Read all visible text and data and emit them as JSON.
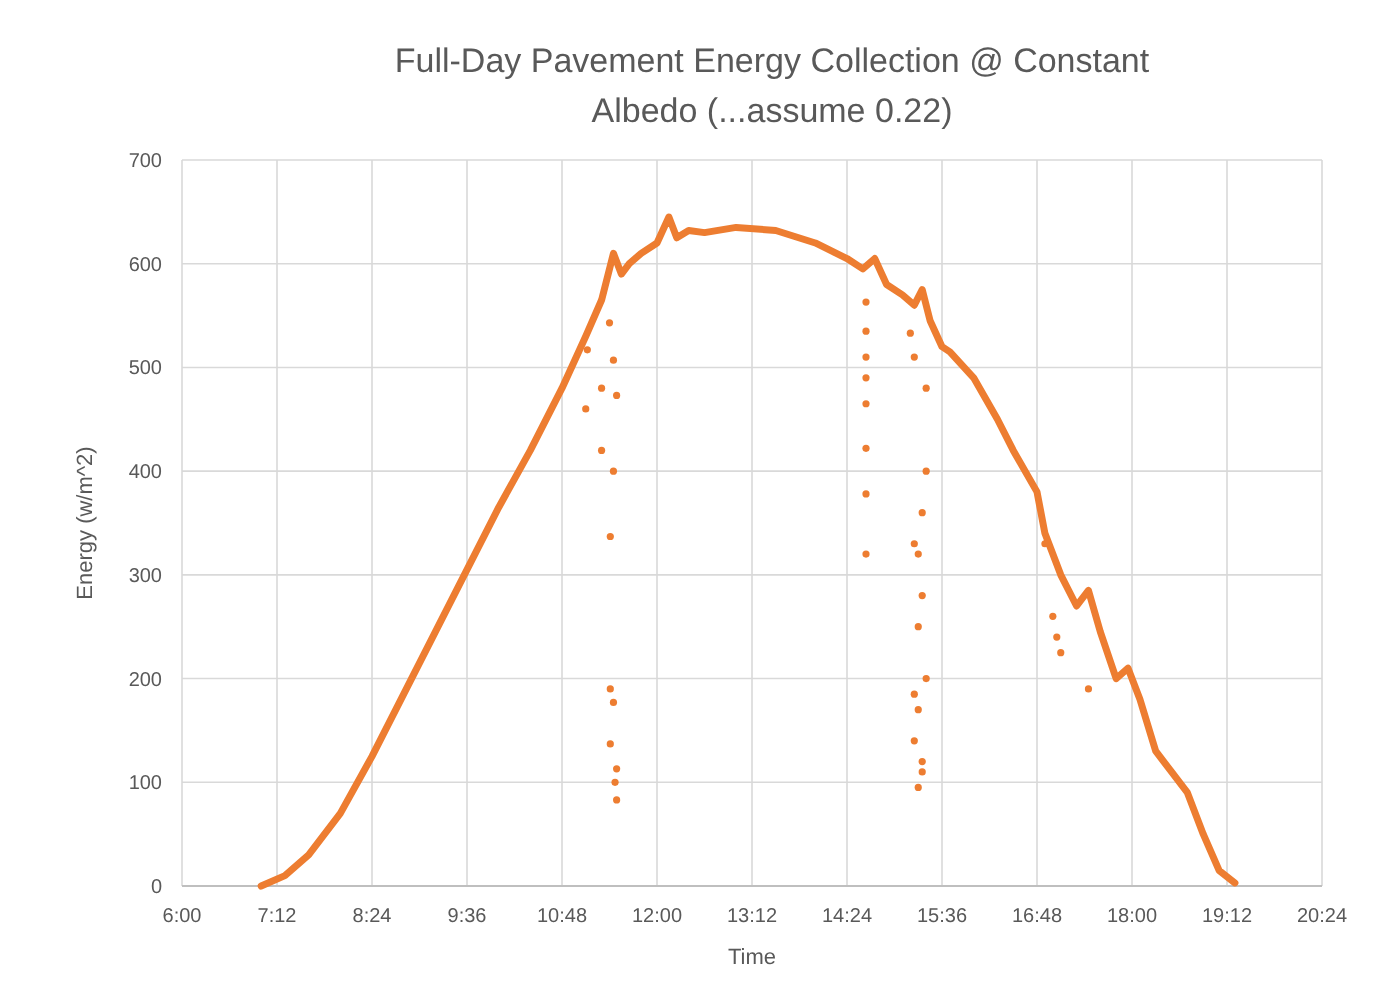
{
  "chart_data": {
    "type": "scatter",
    "title": "Full-Day Pavement Energy Collection @ Constant Albedo (...assume 0.22)",
    "xlabel": "Time",
    "ylabel": "Energy (w/m^2)",
    "xlim": [
      6,
      20.4
    ],
    "ylim": [
      0,
      700
    ],
    "xticks": [
      {
        "value": 6,
        "label": "6:00"
      },
      {
        "value": 7.2,
        "label": "7:12"
      },
      {
        "value": 8.4,
        "label": "8:24"
      },
      {
        "value": 9.6,
        "label": "9:36"
      },
      {
        "value": 10.8,
        "label": "10:48"
      },
      {
        "value": 12,
        "label": "12:00"
      },
      {
        "value": 13.2,
        "label": "13:12"
      },
      {
        "value": 14.4,
        "label": "14:24"
      },
      {
        "value": 15.6,
        "label": "15:36"
      },
      {
        "value": 16.8,
        "label": "16:48"
      },
      {
        "value": 18,
        "label": "18:00"
      },
      {
        "value": 19.2,
        "label": "19:12"
      },
      {
        "value": 20.4,
        "label": "20:24"
      }
    ],
    "yticks": [
      0,
      100,
      200,
      300,
      400,
      500,
      600,
      700
    ],
    "grid": true,
    "series": [
      {
        "type": "line",
        "marker": "none",
        "color": "#ed7d31",
        "x": [
          7.0,
          7.3,
          7.6,
          8.0,
          8.4,
          8.8,
          9.2,
          9.6,
          10.0,
          10.4,
          10.8,
          11.1,
          11.3,
          11.45,
          11.55,
          11.65,
          11.8,
          12.0,
          12.15,
          12.25,
          12.4,
          12.6,
          13.0,
          13.5,
          14.0,
          14.4,
          14.6,
          14.75,
          14.9,
          15.1,
          15.25,
          15.35,
          15.45,
          15.6,
          15.7,
          16.0,
          16.3,
          16.5,
          16.8,
          16.9,
          17.1,
          17.3,
          17.45,
          17.6,
          17.8,
          17.95,
          18.1,
          18.3,
          18.5,
          18.7,
          18.9,
          19.1,
          19.3
        ],
        "values": [
          0,
          10,
          30,
          70,
          125,
          185,
          245,
          305,
          365,
          420,
          480,
          530,
          565,
          610,
          590,
          600,
          610,
          620,
          645,
          625,
          632,
          630,
          635,
          632,
          620,
          605,
          595,
          605,
          580,
          570,
          560,
          575,
          545,
          520,
          515,
          490,
          450,
          420,
          380,
          340,
          300,
          270,
          285,
          245,
          200,
          210,
          180,
          130,
          110,
          90,
          50,
          15,
          3
        ]
      },
      {
        "marker": "circle",
        "color": "#ed7d31",
        "x": [
          11.12,
          11.1,
          11.4,
          11.45,
          11.3,
          11.49,
          11.3,
          11.45,
          11.41,
          11.41,
          11.45,
          11.41,
          11.49,
          11.47,
          11.49,
          14.64,
          14.64,
          14.64,
          14.64,
          14.64,
          14.64,
          14.64,
          14.64,
          15.2,
          15.25,
          15.4,
          15.4,
          15.35,
          15.25,
          15.3,
          15.35,
          15.3,
          15.4,
          15.25,
          15.3,
          15.25,
          15.35,
          15.3,
          15.35,
          16.9,
          17.0,
          17.05,
          17.1,
          17.45
        ],
        "values": [
          517,
          460,
          543,
          507,
          480,
          473,
          420,
          400,
          337,
          190,
          177,
          137,
          113,
          100,
          83,
          563,
          535,
          510,
          490,
          465,
          422,
          378,
          320,
          533,
          510,
          480,
          400,
          360,
          330,
          320,
          280,
          250,
          200,
          185,
          170,
          140,
          120,
          95,
          110,
          330,
          260,
          240,
          225,
          190
        ]
      }
    ]
  }
}
